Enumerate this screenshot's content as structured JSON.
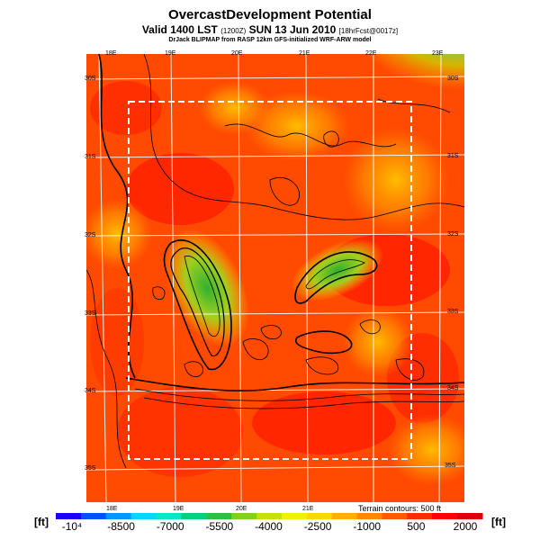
{
  "header": {
    "title": "OvercastDevelopment Potential",
    "subtitle_main": "Valid 1400 LST",
    "subtitle_code1": "(1200Z)",
    "subtitle_date": "SUN 13 Jun 2010",
    "subtitle_code2": "[18hrFcst@0017z]",
    "credit": "DrJack BLIPMAP from RASP 12km GFS-initialized WRF-ARW model"
  },
  "map": {
    "lon_labels_top": [
      "18E",
      "19E",
      "20E",
      "21E",
      "22E",
      "23E"
    ],
    "lon_labels_bottom": [
      "18E",
      "19E",
      "20E",
      "21E"
    ],
    "lat_labels_right": [
      "30S",
      "31S",
      "32S",
      "33S",
      "34S",
      "35S"
    ],
    "lat_labels_left": [
      "30S",
      "31S",
      "32S",
      "33S",
      "34S",
      "35S"
    ],
    "terrain_note": "Terrain contours: 500 ft"
  },
  "colorbar": {
    "unit_left": "[ft]",
    "unit_right": "[ft]",
    "ticks": [
      "-10⁴",
      "-8500",
      "-7000",
      "-5500",
      "-4000",
      "-2500",
      "-1000",
      "500",
      "2000"
    ],
    "colors": [
      "#1a00ff",
      "#0050ff",
      "#0098ff",
      "#00d8ff",
      "#00e8c8",
      "#00d080",
      "#30c040",
      "#80d020",
      "#c8e000",
      "#f0f000",
      "#ffd800",
      "#ffb000",
      "#ff8800",
      "#ff5a00",
      "#ff2a00",
      "#ff0000",
      "#e00000"
    ]
  }
}
